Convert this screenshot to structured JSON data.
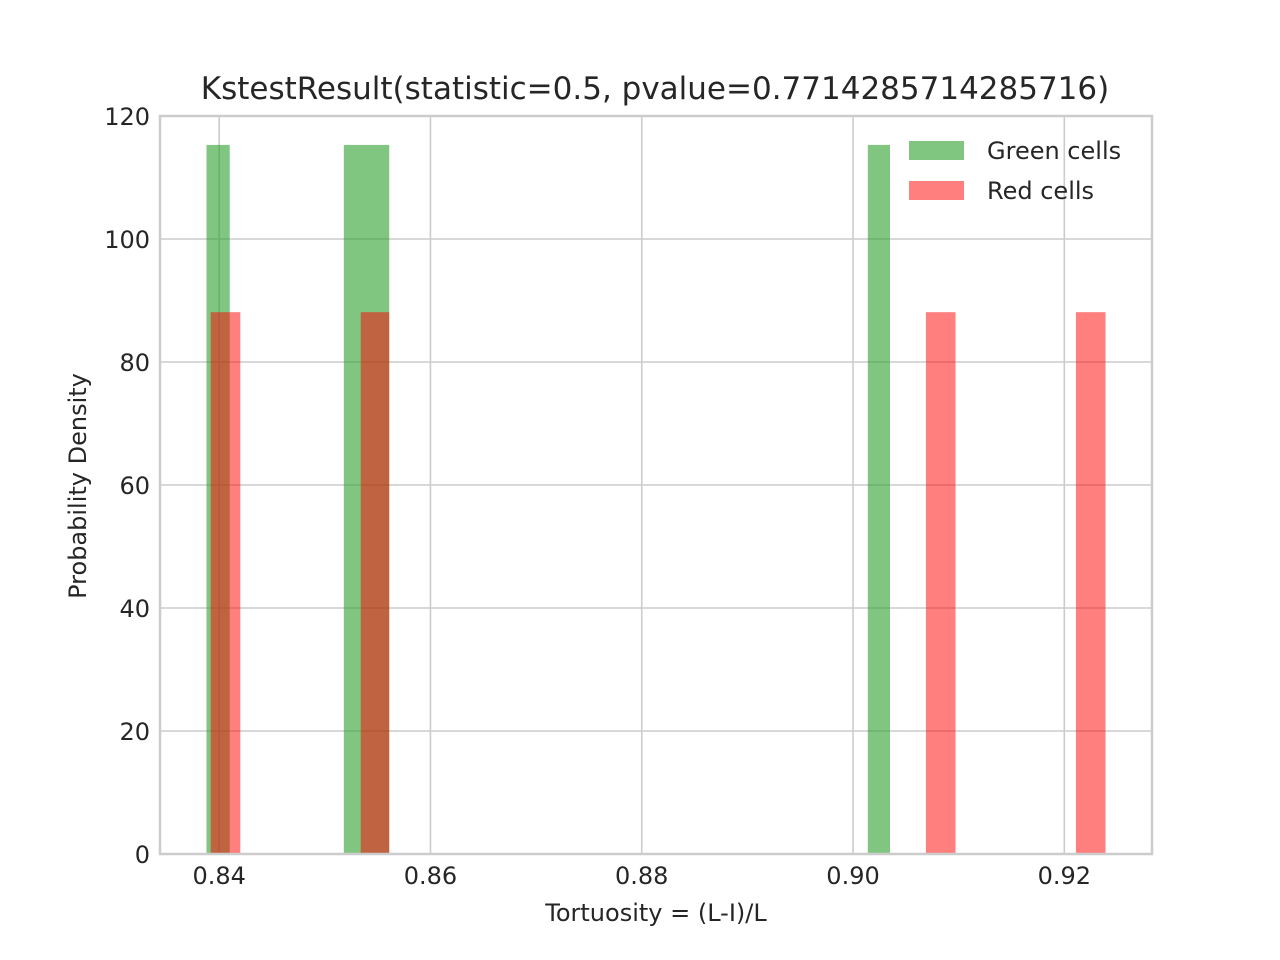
{
  "chart_data": {
    "type": "bar",
    "title": "KstestResult(statistic=0.5, pvalue=0.7714285714285716)",
    "xlabel": "Tortuosity = (L-I)/L",
    "ylabel": "Probability Density",
    "xlim": [
      0.8344,
      0.9283
    ],
    "ylim": [
      0,
      120
    ],
    "xticks": [
      0.84,
      0.86,
      0.88,
      0.9,
      0.92
    ],
    "xtick_labels": [
      "0.84",
      "0.86",
      "0.88",
      "0.90",
      "0.92"
    ],
    "yticks": [
      0,
      20,
      40,
      60,
      80,
      100,
      120
    ],
    "ytick_labels": [
      "0",
      "20",
      "40",
      "60",
      "80",
      "100",
      "120"
    ],
    "grid": true,
    "legend_position": "top-right",
    "series": [
      {
        "name": "Green cells",
        "color": "#2ca02c",
        "opacity": 0.6,
        "bars": [
          {
            "x0": 0.8388,
            "x1": 0.841,
            "y": 115.3
          },
          {
            "x0": 0.8518,
            "x1": 0.8561,
            "y": 115.3
          },
          {
            "x0": 0.9014,
            "x1": 0.9035,
            "y": 115.3
          }
        ]
      },
      {
        "name": "Red cells",
        "color": "#ff0000",
        "opacity": 0.5,
        "bars": [
          {
            "x0": 0.8392,
            "x1": 0.842,
            "y": 88.1
          },
          {
            "x0": 0.8534,
            "x1": 0.8561,
            "y": 88.1
          },
          {
            "x0": 0.9069,
            "x1": 0.9097,
            "y": 88.1
          },
          {
            "x0": 0.9211,
            "x1": 0.9239,
            "y": 88.1
          }
        ]
      }
    ]
  }
}
